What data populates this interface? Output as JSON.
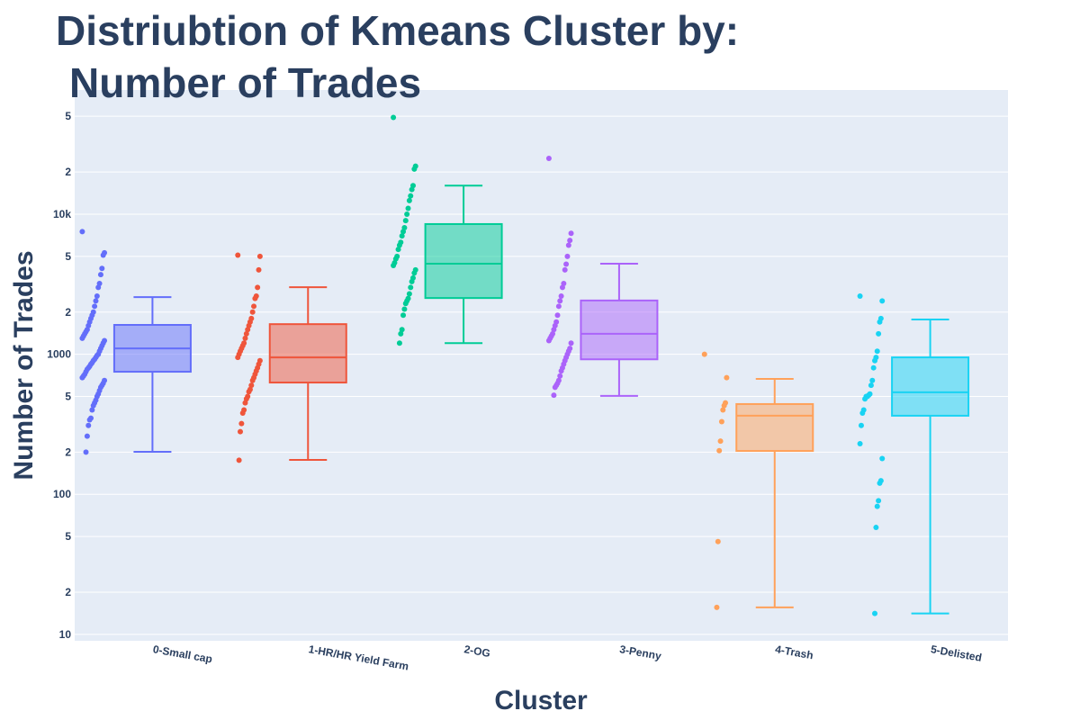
{
  "chart_data": {
    "type": "box",
    "title": [
      "Distriubtion of Kmeans Cluster by:",
      "Number of Trades"
    ],
    "x_label": "Cluster",
    "y_label": "Number of Trades",
    "log_y": true,
    "grid": true,
    "categories": [
      "0-Small cap",
      "1-HR/HR Yield Farm",
      "2-OG",
      "3-Penny",
      "4-Trash",
      "5-Delisted"
    ],
    "ylim": [
      9,
      77000
    ],
    "yticks": [
      10,
      {
        "value": 20,
        "label": "2"
      },
      {
        "value": 50,
        "label": "5"
      },
      100,
      {
        "value": 200,
        "label": "2"
      },
      {
        "value": 500,
        "label": "5"
      },
      1000,
      {
        "value": 2000,
        "label": "2"
      },
      {
        "value": 5000,
        "label": "5"
      },
      {
        "value": 10000,
        "label": "10k"
      },
      {
        "value": 20000,
        "label": "2"
      },
      {
        "value": 50000,
        "label": "5"
      }
    ],
    "series": [
      {
        "color": "#636efa",
        "q1": 750,
        "median": 1100,
        "q3": 1620,
        "lowerfence": 201,
        "upperfence": 2560,
        "values": [
          7500,
          5300,
          5100,
          4100,
          3700,
          3200,
          3000,
          2600,
          2400,
          2200,
          2000,
          1900,
          1800,
          1700,
          1600,
          1500,
          1450,
          1400,
          1350,
          1300,
          1250,
          1200,
          1150,
          1100,
          1050,
          1000,
          980,
          950,
          920,
          900,
          870,
          850,
          820,
          800,
          780,
          750,
          720,
          700,
          680,
          650,
          620,
          600,
          580,
          550,
          520,
          500,
          470,
          450,
          430,
          400,
          350,
          340,
          310,
          260,
          200
        ]
      },
      {
        "color": "#EF553B",
        "q1": 628,
        "median": 950,
        "q3": 1640,
        "lowerfence": 176,
        "upperfence": 3010,
        "values": [
          5100,
          5000,
          4000,
          3000,
          2600,
          2500,
          2200,
          2000,
          1800,
          1700,
          1600,
          1500,
          1400,
          1300,
          1200,
          1150,
          1100,
          1050,
          1000,
          950,
          900,
          850,
          800,
          760,
          720,
          680,
          650,
          600,
          560,
          540,
          500,
          480,
          450,
          400,
          380,
          320,
          280,
          175
        ]
      },
      {
        "color": "#00cc96",
        "q1": 2520,
        "median": 4430,
        "q3": 8500,
        "lowerfence": 1200,
        "upperfence": 16000,
        "values": [
          49000,
          22000,
          21000,
          16000,
          15000,
          13500,
          12500,
          11000,
          10000,
          9000,
          8000,
          7500,
          7000,
          6300,
          6000,
          5600,
          5000,
          4800,
          4500,
          4300,
          4000,
          3800,
          3500,
          3300,
          3000,
          2700,
          2500,
          2400,
          2300,
          2100,
          1900,
          1500,
          1400,
          1200
        ]
      },
      {
        "color": "#ab63fa",
        "q1": 920,
        "median": 1400,
        "q3": 2420,
        "lowerfence": 504,
        "upperfence": 4430,
        "values": [
          25000,
          7300,
          6500,
          6000,
          5000,
          4400,
          4000,
          3200,
          3000,
          2600,
          2400,
          2200,
          1900,
          1700,
          1600,
          1500,
          1400,
          1350,
          1300,
          1250,
          1200,
          1100,
          1050,
          1000,
          950,
          900,
          850,
          800,
          760,
          700,
          650,
          620,
          600,
          580,
          510
        ]
      },
      {
        "color": "#FFA15A",
        "q1": 204,
        "median": 364,
        "q3": 441,
        "lowerfence": 15.6,
        "upperfence": 667,
        "values": [
          1000,
          680,
          450,
          430,
          400,
          330,
          240,
          205,
          46,
          15.6
        ]
      },
      {
        "color": "#19d3f3",
        "q1": 364,
        "median": 535,
        "q3": 950,
        "lowerfence": 14.1,
        "upperfence": 1770,
        "values": [
          2600,
          2400,
          1800,
          1700,
          1400,
          1050,
          950,
          900,
          800,
          650,
          600,
          520,
          510,
          500,
          500,
          480,
          400,
          380,
          310,
          230,
          180,
          125,
          120,
          90,
          82,
          58,
          14.1
        ]
      }
    ]
  }
}
